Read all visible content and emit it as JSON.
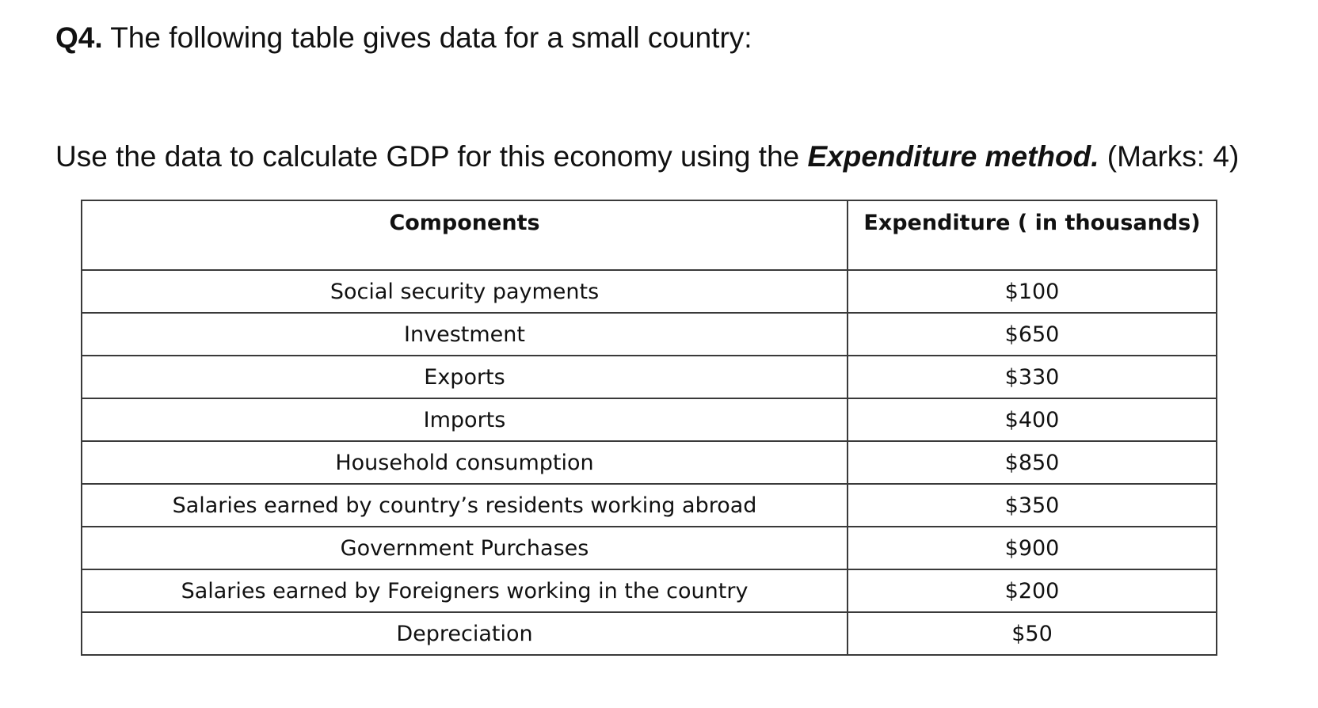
{
  "question": {
    "number": "Q4.",
    "text": " The following table gives data for a small country:"
  },
  "instruction": {
    "before": "Use the data to calculate GDP for this economy using the ",
    "method": "Expenditure method.",
    "marks": "  (Marks: 4)"
  },
  "table": {
    "headers": [
      "Components",
      "Expenditure ( in thousands)"
    ],
    "rows": [
      {
        "component": "Social security payments",
        "expenditure": "$100"
      },
      {
        "component": "Investment",
        "expenditure": "$650"
      },
      {
        "component": "Exports",
        "expenditure": "$330"
      },
      {
        "component": "Imports",
        "expenditure": "$400"
      },
      {
        "component": "Household consumption",
        "expenditure": "$850"
      },
      {
        "component": "Salaries earned by country’s residents working abroad",
        "expenditure": "$350"
      },
      {
        "component": "Government Purchases",
        "expenditure": "$900"
      },
      {
        "component": "Salaries earned  by Foreigners working in the country",
        "expenditure": "$200"
      },
      {
        "component": "Depreciation",
        "expenditure": "$50"
      }
    ]
  }
}
